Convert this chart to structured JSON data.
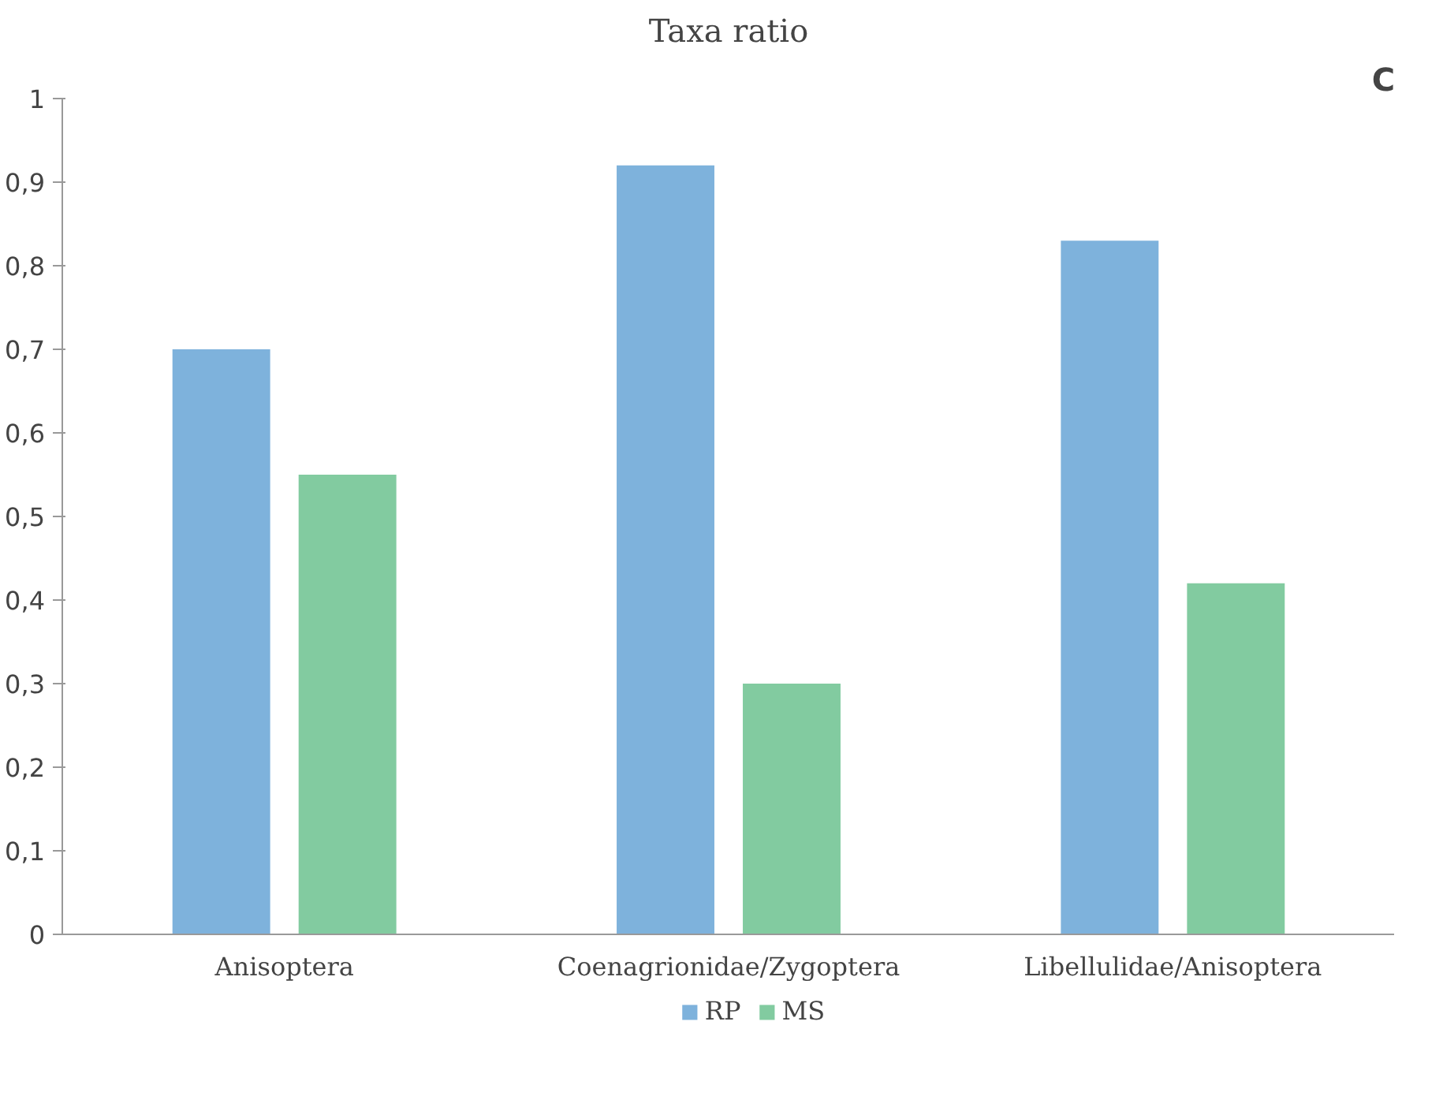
{
  "chart_data": {
    "type": "bar",
    "title": "Taxa ratio",
    "annotations": [
      "C"
    ],
    "categories": [
      "Anisoptera",
      "Coenagrionidae/Zygoptera",
      "Libellulidae/Anisoptera"
    ],
    "series": [
      {
        "name": "RP",
        "color": "#7eb2dc",
        "values": [
          0.7,
          0.92,
          0.83
        ]
      },
      {
        "name": "MS",
        "color": "#82cba0",
        "values": [
          0.55,
          0.3,
          0.42
        ]
      }
    ],
    "ylim": [
      0,
      1
    ],
    "yticks": [
      0,
      {
        "value": 0.1,
        "label": "0,1"
      },
      {
        "value": 0.2,
        "label": "0,2"
      },
      {
        "value": 0.3,
        "label": "0,3"
      },
      {
        "value": 0.4,
        "label": "0,4"
      },
      {
        "value": 0.5,
        "label": "0,5"
      },
      {
        "value": 0.6,
        "label": "0,6"
      },
      {
        "value": 0.7,
        "label": "0,7"
      },
      {
        "value": 0.8,
        "label": "0,8"
      },
      {
        "value": 0.9,
        "label": "0,9"
      },
      1
    ],
    "grid": false,
    "legend": "bottom"
  }
}
